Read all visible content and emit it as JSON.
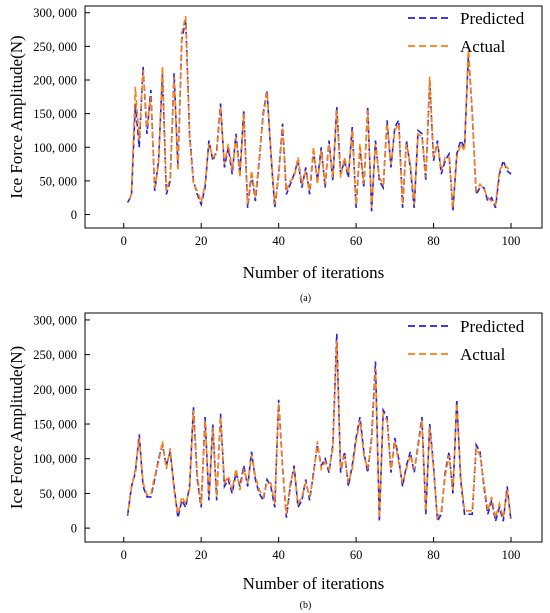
{
  "chart_data": [
    {
      "type": "line",
      "caption": "(a)",
      "xlabel": "Number of iterations",
      "ylabel": "Ice Force Amplitude(N)",
      "xlim": [
        -10,
        108
      ],
      "ylim": [
        -20000,
        310000
      ],
      "xticks": [
        0,
        20,
        40,
        60,
        80,
        100
      ],
      "yticks": [
        0,
        50000,
        100000,
        150000,
        200000,
        250000,
        300000
      ],
      "ytick_labels": [
        "0",
        "50, 000",
        "100, 000",
        "150, 000",
        "200, 000",
        "250, 000",
        "300, 000"
      ],
      "legend_position": "top-right",
      "grid": false,
      "x": [
        1,
        2,
        3,
        4,
        5,
        6,
        7,
        8,
        9,
        10,
        11,
        12,
        13,
        14,
        15,
        16,
        17,
        18,
        19,
        20,
        21,
        22,
        23,
        24,
        25,
        26,
        27,
        28,
        29,
        30,
        31,
        32,
        33,
        34,
        35,
        36,
        37,
        38,
        39,
        40,
        41,
        42,
        43,
        44,
        45,
        46,
        47,
        48,
        49,
        50,
        51,
        52,
        53,
        54,
        55,
        56,
        57,
        58,
        59,
        60,
        61,
        62,
        63,
        64,
        65,
        66,
        67,
        68,
        69,
        70,
        71,
        72,
        73,
        74,
        75,
        76,
        77,
        78,
        79,
        80,
        81,
        82,
        83,
        84,
        85,
        86,
        87,
        88,
        89,
        90,
        91,
        92,
        93,
        94,
        95,
        96,
        97,
        98,
        99,
        100
      ],
      "series": [
        {
          "name": "Predicted",
          "color": "#1f1fe6",
          "values": [
            18000,
            28000,
            165000,
            100000,
            220000,
            120000,
            185000,
            35000,
            80000,
            210000,
            30000,
            50000,
            210000,
            70000,
            260000,
            290000,
            120000,
            50000,
            30000,
            15000,
            40000,
            110000,
            80000,
            95000,
            165000,
            70000,
            100000,
            60000,
            120000,
            60000,
            155000,
            10000,
            60000,
            20000,
            80000,
            150000,
            185000,
            90000,
            10000,
            60000,
            135000,
            30000,
            45000,
            60000,
            80000,
            40000,
            70000,
            30000,
            95000,
            50000,
            100000,
            40000,
            110000,
            50000,
            160000,
            60000,
            80000,
            55000,
            130000,
            10000,
            100000,
            40000,
            160000,
            5000,
            110000,
            50000,
            40000,
            140000,
            70000,
            130000,
            140000,
            10000,
            110000,
            70000,
            10000,
            125000,
            120000,
            50000,
            200000,
            80000,
            110000,
            60000,
            80000,
            90000,
            5000,
            90000,
            110000,
            100000,
            240000,
            150000,
            30000,
            40000,
            40000,
            20000,
            25000,
            10000,
            60000,
            80000,
            65000,
            60000
          ]
        },
        {
          "name": "Actual",
          "color": "#ff7f0e",
          "values": [
            17000,
            30000,
            190000,
            110000,
            215000,
            130000,
            175000,
            40000,
            75000,
            220000,
            35000,
            55000,
            205000,
            65000,
            270000,
            295000,
            115000,
            45000,
            35000,
            18000,
            45000,
            105000,
            85000,
            90000,
            160000,
            75000,
            105000,
            65000,
            115000,
            55000,
            150000,
            15000,
            65000,
            25000,
            85000,
            145000,
            182000,
            95000,
            15000,
            55000,
            130000,
            35000,
            50000,
            55000,
            85000,
            45000,
            65000,
            35000,
            100000,
            45000,
            95000,
            45000,
            105000,
            55000,
            155000,
            55000,
            85000,
            60000,
            125000,
            15000,
            105000,
            45000,
            155000,
            10000,
            105000,
            55000,
            45000,
            135000,
            75000,
            125000,
            135000,
            15000,
            105000,
            75000,
            15000,
            120000,
            115000,
            55000,
            205000,
            85000,
            105000,
            65000,
            85000,
            85000,
            10000,
            85000,
            105000,
            95000,
            250000,
            145000,
            35000,
            45000,
            38000,
            25000,
            20000,
            15000,
            65000,
            75000,
            70000,
            62000
          ]
        }
      ]
    },
    {
      "type": "line",
      "caption": "(b)",
      "xlabel": "Number of iterations",
      "ylabel": "Ice Force Amplitude(N)",
      "xlim": [
        -10,
        108
      ],
      "ylim": [
        -20000,
        310000
      ],
      "xticks": [
        0,
        20,
        40,
        60,
        80,
        100
      ],
      "yticks": [
        0,
        50000,
        100000,
        150000,
        200000,
        250000,
        300000
      ],
      "ytick_labels": [
        "0",
        "50, 000",
        "100, 000",
        "150, 000",
        "200, 000",
        "250, 000",
        "300, 000"
      ],
      "legend_position": "top-right",
      "grid": false,
      "x": [
        1,
        2,
        3,
        4,
        5,
        6,
        7,
        8,
        9,
        10,
        11,
        12,
        13,
        14,
        15,
        16,
        17,
        18,
        19,
        20,
        21,
        22,
        23,
        24,
        25,
        26,
        27,
        28,
        29,
        30,
        31,
        32,
        33,
        34,
        35,
        36,
        37,
        38,
        39,
        40,
        41,
        42,
        43,
        44,
        45,
        46,
        47,
        48,
        49,
        50,
        51,
        52,
        53,
        54,
        55,
        56,
        57,
        58,
        59,
        60,
        61,
        62,
        63,
        64,
        65,
        66,
        67,
        68,
        69,
        70,
        71,
        72,
        73,
        74,
        75,
        76,
        77,
        78,
        79,
        80,
        81,
        82,
        83,
        84,
        85,
        86,
        87,
        88,
        89,
        90,
        91,
        92,
        93,
        94,
        95,
        96,
        97,
        98,
        99,
        100
      ],
      "series": [
        {
          "name": "Predicted",
          "color": "#1f1fe6",
          "values": [
            18000,
            60000,
            80000,
            135000,
            60000,
            45000,
            45000,
            70000,
            100000,
            120000,
            90000,
            110000,
            60000,
            15000,
            40000,
            30000,
            60000,
            175000,
            70000,
            30000,
            160000,
            40000,
            150000,
            40000,
            165000,
            60000,
            70000,
            50000,
            80000,
            60000,
            90000,
            60000,
            110000,
            70000,
            50000,
            40000,
            70000,
            60000,
            30000,
            185000,
            90000,
            15000,
            60000,
            90000,
            30000,
            40000,
            70000,
            40000,
            80000,
            120000,
            90000,
            100000,
            80000,
            120000,
            280000,
            80000,
            110000,
            60000,
            90000,
            130000,
            160000,
            110000,
            80000,
            130000,
            240000,
            10000,
            170000,
            160000,
            80000,
            130000,
            100000,
            60000,
            90000,
            110000,
            80000,
            120000,
            160000,
            20000,
            150000,
            90000,
            10000,
            20000,
            80000,
            110000,
            50000,
            185000,
            70000,
            20000,
            20000,
            20000,
            120000,
            110000,
            60000,
            20000,
            40000,
            10000,
            30000,
            10000,
            60000,
            10000
          ]
        },
        {
          "name": "Actual",
          "color": "#ff7f0e",
          "values": [
            20000,
            58000,
            85000,
            130000,
            65000,
            48000,
            48000,
            75000,
            95000,
            125000,
            85000,
            115000,
            55000,
            20000,
            45000,
            35000,
            55000,
            170000,
            75000,
            35000,
            155000,
            45000,
            145000,
            45000,
            160000,
            65000,
            75000,
            55000,
            85000,
            55000,
            85000,
            65000,
            105000,
            75000,
            55000,
            45000,
            65000,
            65000,
            35000,
            180000,
            85000,
            20000,
            65000,
            85000,
            35000,
            45000,
            65000,
            45000,
            75000,
            125000,
            85000,
            95000,
            85000,
            115000,
            270000,
            85000,
            105000,
            65000,
            85000,
            125000,
            155000,
            105000,
            85000,
            125000,
            230000,
            15000,
            165000,
            155000,
            85000,
            125000,
            95000,
            65000,
            85000,
            105000,
            85000,
            115000,
            155000,
            25000,
            145000,
            85000,
            15000,
            25000,
            75000,
            105000,
            55000,
            180000,
            75000,
            25000,
            25000,
            25000,
            115000,
            105000,
            65000,
            25000,
            45000,
            15000,
            35000,
            15000,
            55000,
            15000
          ]
        }
      ]
    }
  ]
}
